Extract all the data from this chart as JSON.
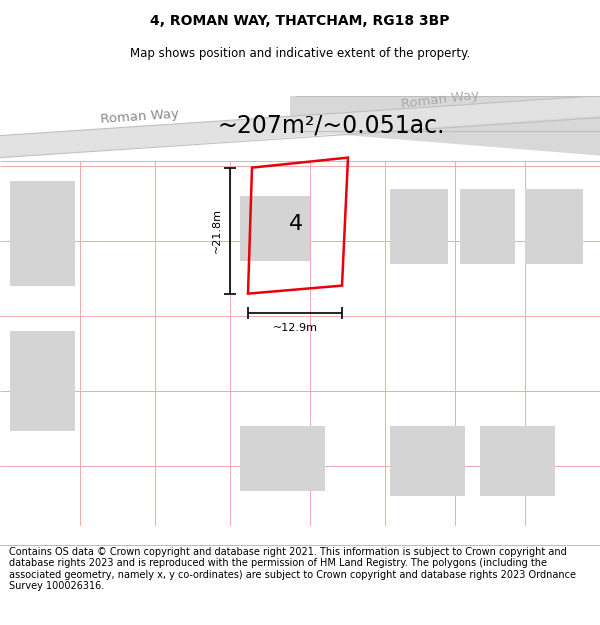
{
  "title": "4, ROMAN WAY, THATCHAM, RG18 3BP",
  "subtitle": "Map shows position and indicative extent of the property.",
  "area_text": "~207m²/~0.051ac.",
  "number_label": "4",
  "dim_width": "~12.9m",
  "dim_height": "~21.8m",
  "road_label1": "Roman Way",
  "road_label2": "Roman Way",
  "copyright_text": "Contains OS data © Crown copyright and database right 2021. This information is subject to Crown copyright and database rights 2023 and is reproduced with the permission of HM Land Registry. The polygons (including the associated geometry, namely x, y co-ordinates) are subject to Crown copyright and database rights 2023 Ordnance Survey 100026316.",
  "bg_color": "#ffffff",
  "map_bg": "#ffffff",
  "road_fill": "#e8e8e8",
  "plot_outline_color": "#e8000a",
  "building_fill": "#d4d4d4",
  "boundary_line_color": "#f0aaaa",
  "road_gray": "#e2e2e2",
  "road_gray2": "#d8d8d8",
  "title_fontsize": 10,
  "subtitle_fontsize": 8.5,
  "area_fontsize": 17,
  "label_fontsize": 16,
  "dim_fontsize": 8,
  "road_label_fontsize": 9.5,
  "copyright_fontsize": 7
}
